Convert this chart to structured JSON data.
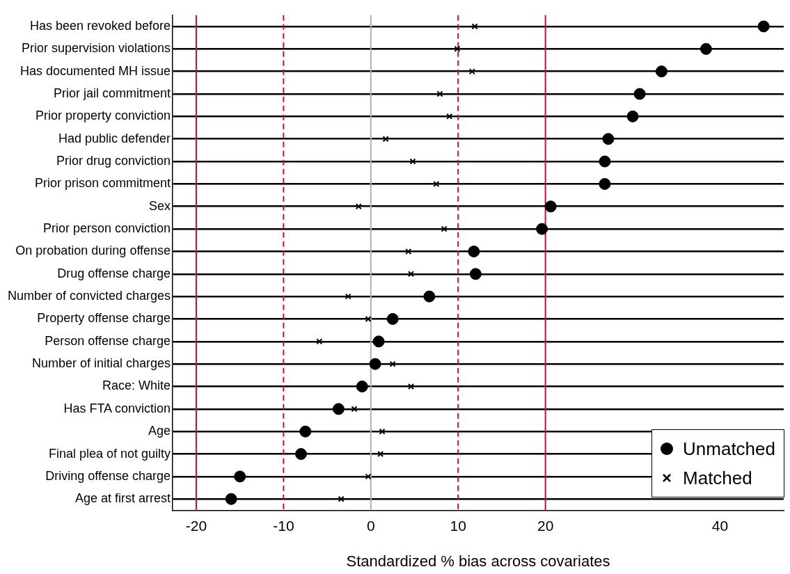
{
  "chart_data": {
    "type": "scatter",
    "orientation": "horizontal",
    "xlabel": "Standardized % bias across covariates",
    "categories": [
      "Has been revoked before",
      "Prior supervision violations",
      "Has documented MH issue",
      "Prior jail commitment",
      "Prior property conviction",
      "Had public defender",
      "Prior drug conviction",
      "Prior prison commitment",
      "Sex",
      "Prior person conviction",
      "On probation during offense",
      "Drug offense charge",
      "Number of convicted charges",
      "Property offense charge",
      "Person offense charge",
      "Number of initial charges",
      "Race: White",
      "Has FTA conviction",
      "Age",
      "Final plea of not guilty",
      "Driving offense charge",
      "Age at first arrest"
    ],
    "series": [
      {
        "name": "Unmatched",
        "color": "#000000",
        "marker": "circle",
        "values": [
          45.0,
          38.4,
          33.3,
          30.8,
          30.0,
          27.2,
          26.8,
          26.8,
          20.6,
          19.6,
          11.8,
          12.0,
          6.7,
          2.5,
          0.9,
          0.5,
          -1.0,
          -3.7,
          -7.5,
          -8.0,
          -15.0,
          -16.0
        ]
      },
      {
        "name": "Matched",
        "color": "#000000",
        "marker": "cross",
        "values": [
          11.9,
          9.9,
          11.6,
          7.9,
          9.0,
          1.7,
          4.8,
          7.5,
          -1.4,
          8.4,
          4.3,
          4.6,
          -2.6,
          -0.3,
          -5.9,
          2.5,
          4.6,
          -1.9,
          1.3,
          1.1,
          -0.3,
          -3.4
        ]
      }
    ],
    "xlim": [
      -22.7,
      47.3
    ],
    "xticks": [
      -20,
      -10,
      0,
      10,
      20,
      40
    ],
    "ref_lines": [
      {
        "axis": "x",
        "value": -20,
        "color": "#c8102e",
        "line_style": "solid"
      },
      {
        "axis": "x",
        "value": -10,
        "color": "#c8102e",
        "line_style": "dashed"
      },
      {
        "axis": "x",
        "value": 0,
        "color": "#b0b0b0",
        "line_style": "solid"
      },
      {
        "axis": "x",
        "value": 10,
        "color": "#c8102e",
        "line_style": "dashed"
      },
      {
        "axis": "x",
        "value": 20,
        "color": "#c8102e",
        "line_style": "solid"
      }
    ],
    "grid": "y",
    "legend": "bottom right"
  }
}
